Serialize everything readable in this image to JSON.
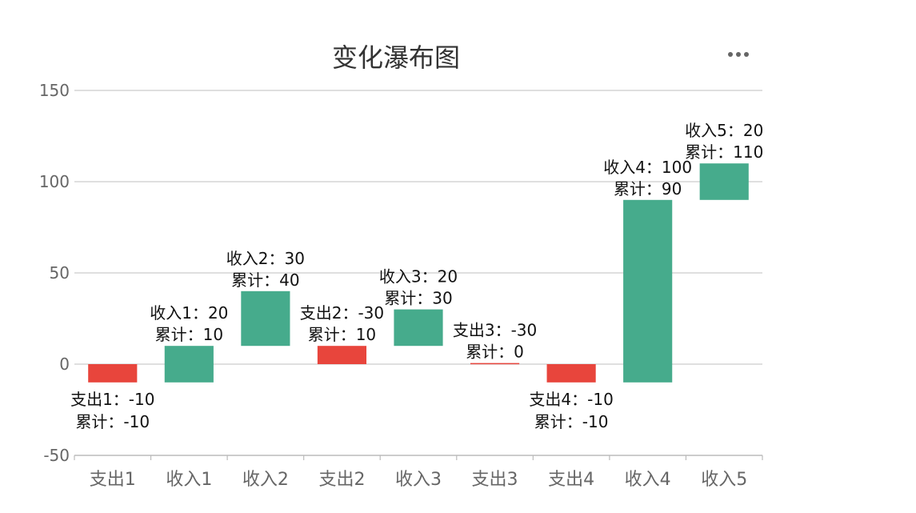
{
  "chart_data": {
    "type": "bar",
    "subtype": "waterfall",
    "title": "变化瀑布图",
    "categories": [
      "支出1",
      "收入1",
      "收入2",
      "支出2",
      "收入3",
      "支出3",
      "支出4",
      "收入4",
      "收入5"
    ],
    "bars": [
      {
        "category": "支出1",
        "change": -10,
        "cumulative": -10,
        "low": -10,
        "high": 0,
        "kind": "expense",
        "label_line1": "支出1：-10",
        "label_line2": "累计：-10",
        "label_position": "below"
      },
      {
        "category": "收入1",
        "change": 20,
        "cumulative": 10,
        "low": -10,
        "high": 10,
        "kind": "income",
        "label_line1": "收入1：20",
        "label_line2": "累计：10",
        "label_position": "above"
      },
      {
        "category": "收入2",
        "change": 30,
        "cumulative": 40,
        "low": 10,
        "high": 40,
        "kind": "income",
        "label_line1": "收入2：30",
        "label_line2": "累计：40",
        "label_position": "above"
      },
      {
        "category": "支出2",
        "change": -30,
        "cumulative": 10,
        "low": 0,
        "high": 10,
        "kind": "expense",
        "label_line1": "支出2：-30",
        "label_line2": "累计：10",
        "label_position": "above"
      },
      {
        "category": "收入3",
        "change": 20,
        "cumulative": 30,
        "low": 10,
        "high": 30,
        "kind": "income",
        "label_line1": "收入3：20",
        "label_line2": "累计：30",
        "label_position": "above"
      },
      {
        "category": "支出3",
        "change": -30,
        "cumulative": 0,
        "low": 0,
        "high": 0.6,
        "kind": "expense",
        "label_line1": "支出3：-30",
        "label_line2": "累计：0",
        "label_position": "above"
      },
      {
        "category": "支出4",
        "change": -10,
        "cumulative": -10,
        "low": -10,
        "high": 0,
        "kind": "expense",
        "label_line1": "支出4：-10",
        "label_line2": "累计：-10",
        "label_position": "below"
      },
      {
        "category": "收入4",
        "change": 100,
        "cumulative": 90,
        "low": -10,
        "high": 90,
        "kind": "income",
        "label_line1": "收入4：100",
        "label_line2": "累计：90",
        "label_position": "above"
      },
      {
        "category": "收入5",
        "change": 20,
        "cumulative": 110,
        "low": 90,
        "high": 110,
        "kind": "income",
        "label_line1": "收入5：20",
        "label_line2": "累计：110",
        "label_position": "above"
      }
    ],
    "yticks": [
      150,
      100,
      50,
      0,
      -50
    ],
    "ylim": [
      -50,
      150
    ],
    "xlabel": "",
    "ylabel": "",
    "grid": true,
    "colors": {
      "income": "#46ab8c",
      "expense": "#e8453c",
      "grid": "#cccccc",
      "axis": "#bbbbbb"
    }
  },
  "toolbar": {
    "menu_icon": "more-horizontal-icon"
  }
}
